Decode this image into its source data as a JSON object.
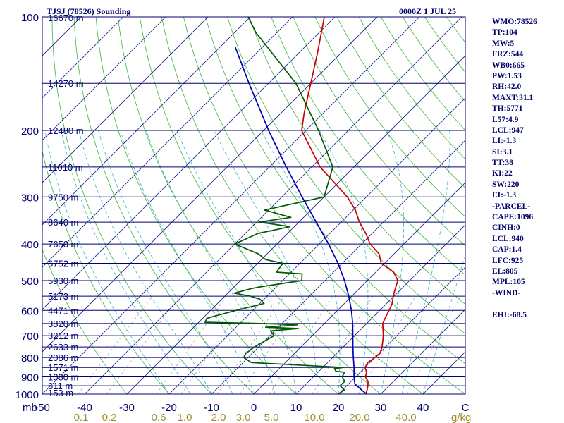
{
  "header": {
    "station": "TJSJ (78526) Sounding",
    "time": "0000Z  1 JUL 25",
    "units_left": "mb",
    "units_right": "g/kg"
  },
  "indices": [
    "WMO:78526",
    "TP:104",
    "MW:5",
    "FRZ:544",
    "WB0:665",
    "PW:1.53",
    "RH:42.0",
    "MAXT:31.1",
    "TH:5771",
    "L57:4.9",
    "LCL:947",
    "LI:-1.3",
    "SI:3.1",
    "TT:38",
    "KI:22",
    "SW:220",
    "EI:-1.3",
    "-PARCEL-",
    "CAPE:1096",
    "CINH:0",
    "LCL:940",
    "CAP:1.4",
    "LFC:925",
    "EL:805",
    "MPL:105",
    "-WIND-",
    "",
    "EHI:-68.5"
  ],
  "colors": {
    "frame": "#00006e",
    "isobar": "#00006e",
    "isotherm": "#1e1e8c",
    "dry_adiabat": "#3cb43c",
    "moist_adiabat": "#3cb4c8",
    "mixing_ratio": "#a0a0a0",
    "temperature": "#c80000",
    "dewpoint": "#005a00",
    "parcel": "#0000b4",
    "axis_text": "#00006e",
    "mixing_text": "#a08c28"
  },
  "chart_data": {
    "type": "line",
    "diagram": "skew-T log-P",
    "pressure_levels": [
      100,
      200,
      300,
      400,
      500,
      600,
      700,
      800,
      900,
      1000
    ],
    "temperature_ticks": [
      -50,
      -40,
      -30,
      -20,
      -10,
      0,
      10,
      20,
      30,
      40
    ],
    "temperature_labels": [
      "-50",
      "-40",
      "-30",
      "-20",
      "-10",
      "0",
      "10",
      "20",
      "30",
      "40",
      "C"
    ],
    "mixing_ratio_labels": [
      "0.1",
      "0.2",
      "0.6",
      "1.0",
      "2.0",
      "3.0",
      "5.0",
      "10.0",
      "20.0",
      "40.0"
    ],
    "mixing_ratio_values": [
      0.1,
      0.2,
      0.6,
      1.0,
      2.0,
      3.0,
      5.0,
      10.0,
      20.0,
      40.0
    ],
    "height_labels": [
      {
        "p": 100,
        "text": "16670 m"
      },
      {
        "p": 150,
        "text": "14270 m"
      },
      {
        "p": 200,
        "text": "12480 m"
      },
      {
        "p": 250,
        "text": "11010 m"
      },
      {
        "p": 300,
        "text": "9750 m"
      },
      {
        "p": 350,
        "text": "8640 m"
      },
      {
        "p": 400,
        "text": "7650 m"
      },
      {
        "p": 450,
        "text": "6752 m"
      },
      {
        "p": 500,
        "text": "5930 m"
      },
      {
        "p": 550,
        "text": "5173 m"
      },
      {
        "p": 600,
        "text": "4471 m"
      },
      {
        "p": 650,
        "text": "3820 m"
      },
      {
        "p": 700,
        "text": "3212 m"
      },
      {
        "p": 750,
        "text": "2633 m"
      },
      {
        "p": 800,
        "text": "2086 m"
      },
      {
        "p": 850,
        "text": "1571 m"
      },
      {
        "p": 900,
        "text": "1080 m"
      },
      {
        "p": 950,
        "text": "611 m"
      },
      {
        "p": 1000,
        "text": "153 m"
      }
    ],
    "axes": {
      "p_top": 100,
      "p_bottom": 1000,
      "t_left_at_bottom": -50,
      "t_right_at_bottom": 50,
      "skew": "45 degrees"
    },
    "series": [
      {
        "name": "Temperature",
        "p": [
          1014,
          1000,
          975,
          950,
          925,
          900,
          875,
          850,
          825,
          800,
          780,
          750,
          700,
          650,
          620,
          600,
          575,
          550,
          525,
          500,
          475,
          450,
          425,
          400,
          375,
          350,
          325,
          300,
          250,
          200,
          180,
          150,
          125,
          110,
          100
        ],
        "t": [
          27.8,
          26.5,
          25.8,
          25.0,
          24.0,
          22.3,
          21.5,
          20.0,
          19.5,
          20.0,
          20.2,
          19.2,
          16.8,
          13.8,
          12.8,
          12.2,
          11.3,
          9.8,
          8.5,
          7.2,
          4.2,
          -0.8,
          -3.5,
          -8.0,
          -11.5,
          -15.7,
          -19.5,
          -24.5,
          -38.0,
          -51.0,
          -54.5,
          -60.0,
          -65.5,
          -69.5,
          -72.5
        ]
      },
      {
        "name": "Dewpoint",
        "p": [
          1014,
          1000,
          975,
          950,
          925,
          900,
          875,
          870,
          855,
          850,
          825,
          800,
          780,
          750,
          700,
          680,
          670,
          665,
          655,
          650,
          645,
          630,
          620,
          600,
          575,
          560,
          550,
          540,
          525,
          520,
          500,
          480,
          475,
          450,
          440,
          425,
          400,
          375,
          360,
          355,
          350,
          340,
          325,
          300,
          250,
          200,
          150,
          110,
          100
        ],
        "t": [
          20.5,
          20.0,
          20.4,
          18.4,
          18.5,
          16.8,
          16.3,
          14.0,
          13.0,
          15.0,
          -8.0,
          -11.0,
          -11.5,
          -11.0,
          -9.0,
          -11.0,
          -5.0,
          -13.0,
          -6.0,
          -15.0,
          -28.5,
          -29.0,
          -27.5,
          -24.0,
          -19.0,
          -21.0,
          -24.0,
          -28.5,
          -25.5,
          -24.0,
          -15.5,
          -17.0,
          -23.5,
          -24.0,
          -29.0,
          -32.0,
          -40.0,
          -37.0,
          -31.0,
          -35.0,
          -39.5,
          -33.0,
          -41.0,
          -30.0,
          -35.0,
          -47.0,
          -63.5,
          -85.0,
          -90.5
        ]
      },
      {
        "name": "Parcel",
        "p": [
          1014,
          975,
          950,
          940,
          925,
          900,
          850,
          800,
          750,
          700,
          650,
          600,
          550,
          500,
          450,
          400,
          350,
          300,
          250,
          200,
          150,
          120
        ],
        "t": [
          27.8,
          24.5,
          22.4,
          21.5,
          20.8,
          19.6,
          17.4,
          14.9,
          12.3,
          9.6,
          6.7,
          3.3,
          -0.7,
          -5.4,
          -11.0,
          -17.8,
          -25.9,
          -35.2,
          -46.0,
          -58.8,
          -74.6,
          -86.5
        ]
      }
    ]
  }
}
